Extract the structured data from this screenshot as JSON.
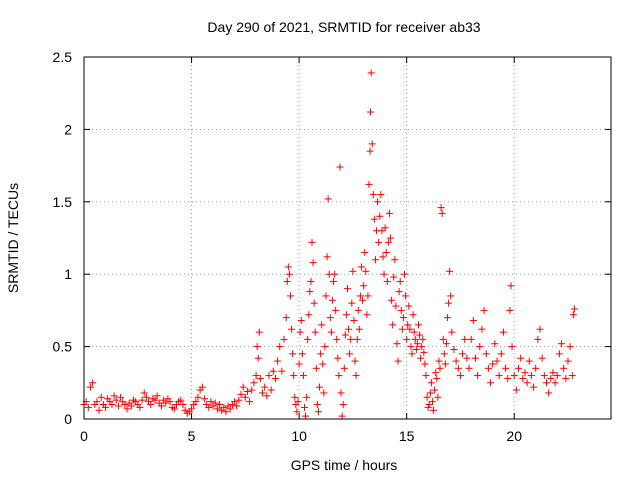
{
  "chart_data": {
    "type": "scatter",
    "title": "Day 290 of 2021, SRMTID for receiver ab33",
    "xlabel": "GPS time / hours",
    "ylabel": "SRMTID / TECUs",
    "xlim": [
      0,
      24.5
    ],
    "ylim": [
      0,
      2.5
    ],
    "x_ticks": [
      0,
      5,
      10,
      15,
      20
    ],
    "x_tick_labels": [
      "0",
      "5",
      "10",
      "15",
      "20"
    ],
    "y_ticks": [
      0,
      0.5,
      1,
      1.5,
      2,
      2.5
    ],
    "y_tick_labels": [
      "0",
      "0.5",
      "1",
      "1.5",
      "2",
      "2.5"
    ],
    "grid": true,
    "marker": "plus",
    "marker_color": "#ff0000",
    "series": [
      {
        "name": "SRMTID",
        "points": [
          [
            0.0,
            0.1
          ],
          [
            0.1,
            0.12
          ],
          [
            0.2,
            0.08
          ],
          [
            0.3,
            0.22
          ],
          [
            0.4,
            0.25
          ],
          [
            0.5,
            0.1
          ],
          [
            0.6,
            0.12
          ],
          [
            0.7,
            0.06
          ],
          [
            0.8,
            0.15
          ],
          [
            0.9,
            0.1
          ],
          [
            1.0,
            0.08
          ],
          [
            1.1,
            0.14
          ],
          [
            1.2,
            0.12
          ],
          [
            1.3,
            0.1
          ],
          [
            1.4,
            0.16
          ],
          [
            1.5,
            0.13
          ],
          [
            1.6,
            0.09
          ],
          [
            1.7,
            0.15
          ],
          [
            1.8,
            0.12
          ],
          [
            1.9,
            0.1
          ],
          [
            2.0,
            0.07
          ],
          [
            2.1,
            0.11
          ],
          [
            2.2,
            0.09
          ],
          [
            2.3,
            0.13
          ],
          [
            2.4,
            0.12
          ],
          [
            2.5,
            0.1
          ],
          [
            2.6,
            0.08
          ],
          [
            2.7,
            0.13
          ],
          [
            2.8,
            0.18
          ],
          [
            2.9,
            0.15
          ],
          [
            3.0,
            0.12
          ],
          [
            3.1,
            0.1
          ],
          [
            3.2,
            0.14
          ],
          [
            3.3,
            0.13
          ],
          [
            3.4,
            0.16
          ],
          [
            3.5,
            0.11
          ],
          [
            3.6,
            0.09
          ],
          [
            3.7,
            0.13
          ],
          [
            3.8,
            0.11
          ],
          [
            3.9,
            0.14
          ],
          [
            4.0,
            0.12
          ],
          [
            4.1,
            0.08
          ],
          [
            4.2,
            0.07
          ],
          [
            4.3,
            0.1
          ],
          [
            4.4,
            0.12
          ],
          [
            4.5,
            0.13
          ],
          [
            4.6,
            0.1
          ],
          [
            4.7,
            0.06
          ],
          [
            4.8,
            0.04
          ],
          [
            4.9,
            0.05
          ],
          [
            5.0,
            0.07
          ],
          [
            5.1,
            0.1
          ],
          [
            5.2,
            0.12
          ],
          [
            5.3,
            0.15
          ],
          [
            5.4,
            0.2
          ],
          [
            5.5,
            0.22
          ],
          [
            5.6,
            0.14
          ],
          [
            5.7,
            0.1
          ],
          [
            5.8,
            0.08
          ],
          [
            5.9,
            0.12
          ],
          [
            6.0,
            0.09
          ],
          [
            6.1,
            0.11
          ],
          [
            6.2,
            0.07
          ],
          [
            6.3,
            0.1
          ],
          [
            6.4,
            0.06
          ],
          [
            6.5,
            0.08
          ],
          [
            6.6,
            0.05
          ],
          [
            6.7,
            0.09
          ],
          [
            6.8,
            0.07
          ],
          [
            6.9,
            0.1
          ],
          [
            7.0,
            0.12
          ],
          [
            7.1,
            0.09
          ],
          [
            7.2,
            0.13
          ],
          [
            7.3,
            0.17
          ],
          [
            7.4,
            0.22
          ],
          [
            7.5,
            0.15
          ],
          [
            7.6,
            0.19
          ],
          [
            7.7,
            0.12
          ],
          [
            7.8,
            0.2
          ],
          [
            7.9,
            0.25
          ],
          [
            8.0,
            0.3
          ],
          [
            8.05,
            0.5
          ],
          [
            8.1,
            0.42
          ],
          [
            8.15,
            0.6
          ],
          [
            8.2,
            0.28
          ],
          [
            8.3,
            0.18
          ],
          [
            8.4,
            0.22
          ],
          [
            8.5,
            0.16
          ],
          [
            8.6,
            0.3
          ],
          [
            8.7,
            0.2
          ],
          [
            8.8,
            0.33
          ],
          [
            8.9,
            0.28
          ],
          [
            9.0,
            0.4
          ],
          [
            9.1,
            0.5
          ],
          [
            9.2,
            0.33
          ],
          [
            9.3,
            0.55
          ],
          [
            9.4,
            0.7
          ],
          [
            9.45,
            0.95
          ],
          [
            9.5,
            1.05
          ],
          [
            9.55,
            1.0
          ],
          [
            9.6,
            0.85
          ],
          [
            9.65,
            0.62
          ],
          [
            9.7,
            0.45
          ],
          [
            9.75,
            0.3
          ],
          [
            9.8,
            0.15
          ],
          [
            9.85,
            0.1
          ],
          [
            9.9,
            0.05
          ],
          [
            9.95,
            0.12
          ],
          [
            10.0,
            0.38
          ],
          [
            10.05,
            0.6
          ],
          [
            10.1,
            0.68
          ],
          [
            10.15,
            0.45
          ],
          [
            10.2,
            0.3
          ],
          [
            10.25,
            0.08
          ],
          [
            10.3,
            0.02
          ],
          [
            10.35,
            0.15
          ],
          [
            10.4,
            0.55
          ],
          [
            10.45,
            0.72
          ],
          [
            10.5,
            0.88
          ],
          [
            10.55,
            0.95
          ],
          [
            10.6,
            1.22
          ],
          [
            10.65,
            1.08
          ],
          [
            10.7,
            0.8
          ],
          [
            10.75,
            0.6
          ],
          [
            10.8,
            0.35
          ],
          [
            10.85,
            0.1
          ],
          [
            10.9,
            0.05
          ],
          [
            10.95,
            0.22
          ],
          [
            11.0,
            0.45
          ],
          [
            11.05,
            0.65
          ],
          [
            11.1,
            0.38
          ],
          [
            11.15,
            0.18
          ],
          [
            11.2,
            0.5
          ],
          [
            11.25,
            0.85
          ],
          [
            11.3,
            1.12
          ],
          [
            11.35,
            1.52
          ],
          [
            11.4,
            1.0
          ],
          [
            11.45,
            0.7
          ],
          [
            11.5,
            0.6
          ],
          [
            11.55,
            0.82
          ],
          [
            11.6,
            0.95
          ],
          [
            11.65,
            1.0
          ],
          [
            11.7,
            0.75
          ],
          [
            11.75,
            0.55
          ],
          [
            11.8,
            0.42
          ],
          [
            11.85,
            0.3
          ],
          [
            11.9,
            1.74
          ],
          [
            11.95,
            0.18
          ],
          [
            12.0,
            0.02
          ],
          [
            12.05,
            0.1
          ],
          [
            12.1,
            0.35
          ],
          [
            12.15,
            0.58
          ],
          [
            12.2,
            0.72
          ],
          [
            12.25,
            0.9
          ],
          [
            12.3,
            0.62
          ],
          [
            12.35,
            0.45
          ],
          [
            12.4,
            0.55
          ],
          [
            12.45,
            0.8
          ],
          [
            12.5,
            1.02
          ],
          [
            12.55,
            0.68
          ],
          [
            12.6,
            0.4
          ],
          [
            12.65,
            0.3
          ],
          [
            12.7,
            0.55
          ],
          [
            12.75,
            0.75
          ],
          [
            12.8,
            0.62
          ],
          [
            12.85,
            0.85
          ],
          [
            12.9,
            1.05
          ],
          [
            12.95,
            0.82
          ],
          [
            13.0,
            0.92
          ],
          [
            13.05,
            1.15
          ],
          [
            13.1,
            1.02
          ],
          [
            13.15,
            0.72
          ],
          [
            13.2,
            0.85
          ],
          [
            13.25,
            1.62
          ],
          [
            13.3,
            1.85
          ],
          [
            13.32,
            2.12
          ],
          [
            13.35,
            2.39
          ],
          [
            13.4,
            1.9
          ],
          [
            13.45,
            1.55
          ],
          [
            13.5,
            1.38
          ],
          [
            13.55,
            1.1
          ],
          [
            13.6,
            1.3
          ],
          [
            13.65,
            1.5
          ],
          [
            13.7,
            1.22
          ],
          [
            13.75,
            1.4
          ],
          [
            13.8,
            1.55
          ],
          [
            13.85,
            1.3
          ],
          [
            13.9,
            1.12
          ],
          [
            13.95,
            1.0
          ],
          [
            14.0,
            1.32
          ],
          [
            14.05,
            1.15
          ],
          [
            14.1,
            0.95
          ],
          [
            14.15,
            1.22
          ],
          [
            14.2,
            1.42
          ],
          [
            14.25,
            1.25
          ],
          [
            14.3,
            0.82
          ],
          [
            14.35,
            0.65
          ],
          [
            14.4,
            0.98
          ],
          [
            14.45,
            1.1
          ],
          [
            14.5,
            0.78
          ],
          [
            14.55,
            0.52
          ],
          [
            14.6,
            0.4
          ],
          [
            14.65,
            0.88
          ],
          [
            14.7,
            0.95
          ],
          [
            14.75,
            0.75
          ],
          [
            14.8,
            0.62
          ],
          [
            14.85,
            0.7
          ],
          [
            14.9,
            1.0
          ],
          [
            14.95,
            0.85
          ],
          [
            15.0,
            0.55
          ],
          [
            15.05,
            0.65
          ],
          [
            15.1,
            0.78
          ],
          [
            15.15,
            0.62
          ],
          [
            15.2,
            0.5
          ],
          [
            15.25,
            0.45
          ],
          [
            15.3,
            0.72
          ],
          [
            15.35,
            0.6
          ],
          [
            15.4,
            0.55
          ],
          [
            15.45,
            0.48
          ],
          [
            15.5,
            0.52
          ],
          [
            15.55,
            0.65
          ],
          [
            15.6,
            0.58
          ],
          [
            15.65,
            0.42
          ],
          [
            15.7,
            0.5
          ],
          [
            15.75,
            0.55
          ],
          [
            15.8,
            0.46
          ],
          [
            15.85,
            0.38
          ],
          [
            15.9,
            0.3
          ],
          [
            15.95,
            0.15
          ],
          [
            16.0,
            0.08
          ],
          [
            16.05,
            0.1
          ],
          [
            16.1,
            0.18
          ],
          [
            16.15,
            0.25
          ],
          [
            16.2,
            0.12
          ],
          [
            16.25,
            0.06
          ],
          [
            16.3,
            0.2
          ],
          [
            16.35,
            0.32
          ],
          [
            16.4,
            0.28
          ],
          [
            16.45,
            0.15
          ],
          [
            16.5,
            0.4
          ],
          [
            16.55,
            0.35
          ],
          [
            16.6,
            1.46
          ],
          [
            16.65,
            1.42
          ],
          [
            16.7,
            0.55
          ],
          [
            16.75,
            0.45
          ],
          [
            16.8,
            0.38
          ],
          [
            16.85,
            0.52
          ],
          [
            16.9,
            0.7
          ],
          [
            16.95,
            0.8
          ],
          [
            17.0,
            1.02
          ],
          [
            17.05,
            0.85
          ],
          [
            17.1,
            0.6
          ],
          [
            17.2,
            0.48
          ],
          [
            17.3,
            0.4
          ],
          [
            17.4,
            0.35
          ],
          [
            17.5,
            0.3
          ],
          [
            17.6,
            0.45
          ],
          [
            17.7,
            0.55
          ],
          [
            17.8,
            0.42
          ],
          [
            17.9,
            0.35
          ],
          [
            18.0,
            0.55
          ],
          [
            18.1,
            0.68
          ],
          [
            18.2,
            0.42
          ],
          [
            18.3,
            0.3
          ],
          [
            18.4,
            0.5
          ],
          [
            18.5,
            0.62
          ],
          [
            18.6,
            0.75
          ],
          [
            18.7,
            0.45
          ],
          [
            18.8,
            0.35
          ],
          [
            18.9,
            0.25
          ],
          [
            19.0,
            0.38
          ],
          [
            19.1,
            0.52
          ],
          [
            19.2,
            0.4
          ],
          [
            19.3,
            0.3
          ],
          [
            19.4,
            0.45
          ],
          [
            19.5,
            0.6
          ],
          [
            19.6,
            0.35
          ],
          [
            19.7,
            0.28
          ],
          [
            19.8,
            0.75
          ],
          [
            19.85,
            0.92
          ],
          [
            19.9,
            0.5
          ],
          [
            20.0,
            0.3
          ],
          [
            20.1,
            0.2
          ],
          [
            20.2,
            0.35
          ],
          [
            20.3,
            0.42
          ],
          [
            20.4,
            0.28
          ],
          [
            20.5,
            0.32
          ],
          [
            20.6,
            0.25
          ],
          [
            20.7,
            0.4
          ],
          [
            20.8,
            0.3
          ],
          [
            20.9,
            0.22
          ],
          [
            21.0,
            0.35
          ],
          [
            21.1,
            0.55
          ],
          [
            21.2,
            0.62
          ],
          [
            21.3,
            0.42
          ],
          [
            21.4,
            0.3
          ],
          [
            21.5,
            0.25
          ],
          [
            21.6,
            0.18
          ],
          [
            21.7,
            0.28
          ],
          [
            21.8,
            0.32
          ],
          [
            21.9,
            0.25
          ],
          [
            22.0,
            0.3
          ],
          [
            22.1,
            0.45
          ],
          [
            22.2,
            0.52
          ],
          [
            22.3,
            0.35
          ],
          [
            22.4,
            0.28
          ],
          [
            22.5,
            0.4
          ],
          [
            22.6,
            0.5
          ],
          [
            22.7,
            0.3
          ],
          [
            22.75,
            0.72
          ],
          [
            22.8,
            0.76
          ]
        ]
      }
    ]
  }
}
